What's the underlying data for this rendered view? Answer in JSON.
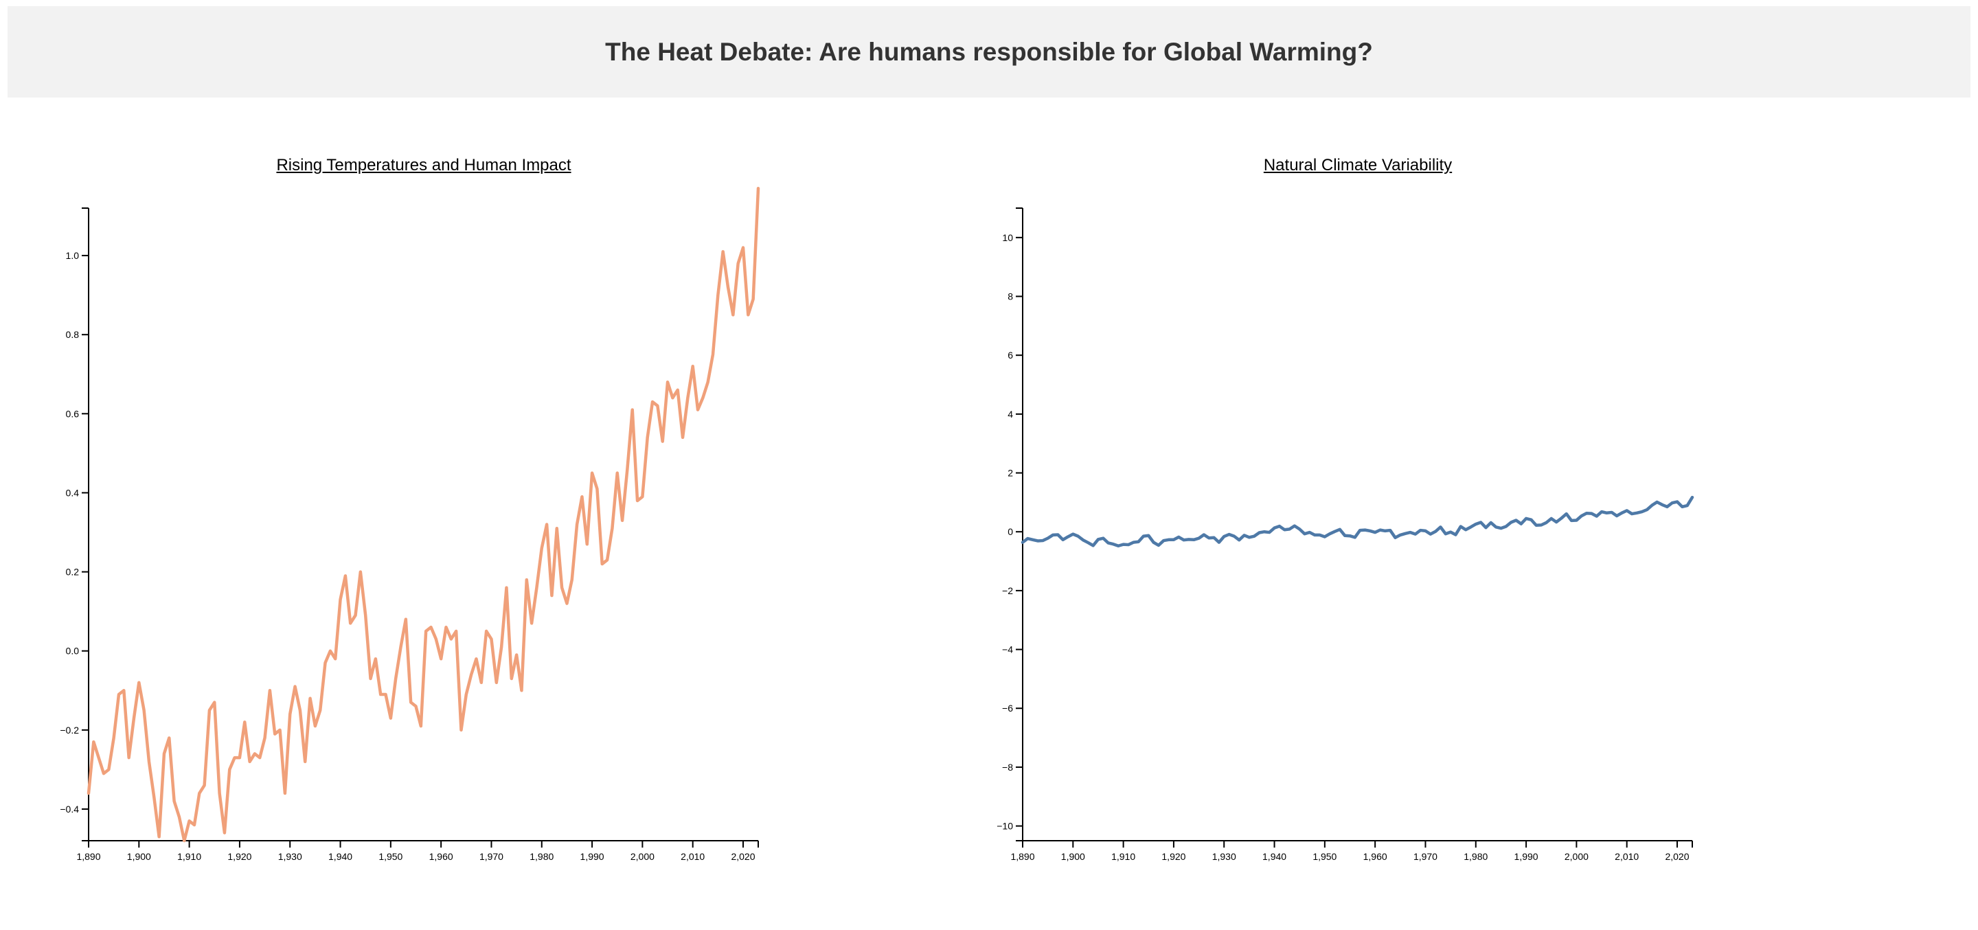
{
  "page_title": "The Heat Debate: Are humans responsible for Global Warming?",
  "chart_data": [
    {
      "type": "line",
      "title": "Rising Temperatures and Human Impact",
      "xlabel": "",
      "ylabel": "",
      "xlim": [
        1890,
        2023
      ],
      "ylim": [
        -0.48,
        1.12
      ],
      "x_ticks": [
        "1,890",
        "1,900",
        "1,910",
        "1,920",
        "1,930",
        "1,940",
        "1,950",
        "1,960",
        "1,970",
        "1,980",
        "1,990",
        "2,000",
        "2,010",
        "2,020"
      ],
      "x_tick_values": [
        1890,
        1900,
        1910,
        1920,
        1930,
        1940,
        1950,
        1960,
        1970,
        1980,
        1990,
        2000,
        2010,
        2020
      ],
      "y_ticks": [
        "−0.4",
        "−0.2",
        "0.0",
        "0.2",
        "0.4",
        "0.6",
        "0.8",
        "1.0"
      ],
      "y_tick_values": [
        -0.4,
        -0.2,
        0.0,
        0.2,
        0.4,
        0.6,
        0.8,
        1.0
      ],
      "grid": false,
      "color": "#f0a07a",
      "series": [
        {
          "x": [
            1890,
            1891,
            1892,
            1893,
            1894,
            1895,
            1896,
            1897,
            1898,
            1899,
            1900,
            1901,
            1902,
            1903,
            1904,
            1905,
            1906,
            1907,
            1908,
            1909,
            1910,
            1911,
            1912,
            1913,
            1914,
            1915,
            1916,
            1917,
            1918,
            1919,
            1920,
            1921,
            1922,
            1923,
            1924,
            1925,
            1926,
            1927,
            1928,
            1929,
            1930,
            1931,
            1932,
            1933,
            1934,
            1935,
            1936,
            1937,
            1938,
            1939,
            1940,
            1941,
            1942,
            1943,
            1944,
            1945,
            1946,
            1947,
            1948,
            1949,
            1950,
            1951,
            1952,
            1953,
            1954,
            1955,
            1956,
            1957,
            1958,
            1959,
            1960,
            1961,
            1962,
            1963,
            1964,
            1965,
            1966,
            1967,
            1968,
            1969,
            1970,
            1971,
            1972,
            1973,
            1974,
            1975,
            1976,
            1977,
            1978,
            1979,
            1980,
            1981,
            1982,
            1983,
            1984,
            1985,
            1986,
            1987,
            1988,
            1989,
            1990,
            1991,
            1992,
            1993,
            1994,
            1995,
            1996,
            1997,
            1998,
            1999,
            2000,
            2001,
            2002,
            2003,
            2004,
            2005,
            2006,
            2007,
            2008,
            2009,
            2010,
            2011,
            2012,
            2013,
            2014,
            2015,
            2016,
            2017,
            2018,
            2019,
            2020,
            2021,
            2022,
            2023
          ],
          "values": [
            -0.36,
            -0.23,
            -0.27,
            -0.31,
            -0.3,
            -0.22,
            -0.11,
            -0.1,
            -0.27,
            -0.17,
            -0.08,
            -0.15,
            -0.28,
            -0.37,
            -0.47,
            -0.26,
            -0.22,
            -0.38,
            -0.42,
            -0.48,
            -0.43,
            -0.44,
            -0.36,
            -0.34,
            -0.15,
            -0.13,
            -0.36,
            -0.46,
            -0.3,
            -0.27,
            -0.27,
            -0.18,
            -0.28,
            -0.26,
            -0.27,
            -0.22,
            -0.1,
            -0.21,
            -0.2,
            -0.36,
            -0.16,
            -0.09,
            -0.15,
            -0.28,
            -0.12,
            -0.19,
            -0.15,
            -0.03,
            0.0,
            -0.02,
            0.13,
            0.19,
            0.07,
            0.09,
            0.2,
            0.09,
            -0.07,
            -0.02,
            -0.11,
            -0.11,
            -0.17,
            -0.07,
            0.01,
            0.08,
            -0.13,
            -0.14,
            -0.19,
            0.05,
            0.06,
            0.03,
            -0.02,
            0.06,
            0.03,
            0.05,
            -0.2,
            -0.11,
            -0.06,
            -0.02,
            -0.08,
            0.05,
            0.03,
            -0.08,
            0.01,
            0.16,
            -0.07,
            -0.01,
            -0.1,
            0.18,
            0.07,
            0.16,
            0.26,
            0.32,
            0.14,
            0.31,
            0.16,
            0.12,
            0.18,
            0.32,
            0.39,
            0.27,
            0.45,
            0.41,
            0.22,
            0.23,
            0.31,
            0.45,
            0.33,
            0.46,
            0.61,
            0.38,
            0.39,
            0.54,
            0.63,
            0.62,
            0.53,
            0.68,
            0.64,
            0.66,
            0.54,
            0.64,
            0.72,
            0.61,
            0.64,
            0.68,
            0.75,
            0.9,
            1.01,
            0.92,
            0.85,
            0.98,
            1.02,
            0.85,
            0.89,
            1.17
          ]
        }
      ]
    },
    {
      "type": "line",
      "title": "Natural Climate Variability",
      "xlabel": "",
      "ylabel": "",
      "xlim": [
        1890,
        2023
      ],
      "ylim": [
        -10.5,
        11
      ],
      "x_ticks": [
        "1,890",
        "1,900",
        "1,910",
        "1,920",
        "1,930",
        "1,940",
        "1,950",
        "1,960",
        "1,970",
        "1,980",
        "1,990",
        "2,000",
        "2,010",
        "2,020"
      ],
      "x_tick_values": [
        1890,
        1900,
        1910,
        1920,
        1930,
        1940,
        1950,
        1960,
        1970,
        1980,
        1990,
        2000,
        2010,
        2020
      ],
      "y_ticks": [
        "−10",
        "−8",
        "−6",
        "−4",
        "−2",
        "0",
        "2",
        "4",
        "6",
        "8",
        "10"
      ],
      "y_tick_values": [
        -10,
        -8,
        -6,
        -4,
        -2,
        0,
        2,
        4,
        6,
        8,
        10
      ],
      "grid": false,
      "color": "#4e79a7",
      "series": [
        {
          "x": [
            1890,
            1891,
            1892,
            1893,
            1894,
            1895,
            1896,
            1897,
            1898,
            1899,
            1900,
            1901,
            1902,
            1903,
            1904,
            1905,
            1906,
            1907,
            1908,
            1909,
            1910,
            1911,
            1912,
            1913,
            1914,
            1915,
            1916,
            1917,
            1918,
            1919,
            1920,
            1921,
            1922,
            1923,
            1924,
            1925,
            1926,
            1927,
            1928,
            1929,
            1930,
            1931,
            1932,
            1933,
            1934,
            1935,
            1936,
            1937,
            1938,
            1939,
            1940,
            1941,
            1942,
            1943,
            1944,
            1945,
            1946,
            1947,
            1948,
            1949,
            1950,
            1951,
            1952,
            1953,
            1954,
            1955,
            1956,
            1957,
            1958,
            1959,
            1960,
            1961,
            1962,
            1963,
            1964,
            1965,
            1966,
            1967,
            1968,
            1969,
            1970,
            1971,
            1972,
            1973,
            1974,
            1975,
            1976,
            1977,
            1978,
            1979,
            1980,
            1981,
            1982,
            1983,
            1984,
            1985,
            1986,
            1987,
            1988,
            1989,
            1990,
            1991,
            1992,
            1993,
            1994,
            1995,
            1996,
            1997,
            1998,
            1999,
            2000,
            2001,
            2002,
            2003,
            2004,
            2005,
            2006,
            2007,
            2008,
            2009,
            2010,
            2011,
            2012,
            2013,
            2014,
            2015,
            2016,
            2017,
            2018,
            2019,
            2020,
            2021,
            2022,
            2023
          ],
          "values": [
            -0.36,
            -0.23,
            -0.27,
            -0.31,
            -0.3,
            -0.22,
            -0.11,
            -0.1,
            -0.27,
            -0.17,
            -0.08,
            -0.15,
            -0.28,
            -0.37,
            -0.47,
            -0.26,
            -0.22,
            -0.38,
            -0.42,
            -0.48,
            -0.43,
            -0.44,
            -0.36,
            -0.34,
            -0.15,
            -0.13,
            -0.36,
            -0.46,
            -0.3,
            -0.27,
            -0.27,
            -0.18,
            -0.28,
            -0.26,
            -0.27,
            -0.22,
            -0.1,
            -0.21,
            -0.2,
            -0.36,
            -0.16,
            -0.09,
            -0.15,
            -0.28,
            -0.12,
            -0.19,
            -0.15,
            -0.03,
            0.0,
            -0.02,
            0.13,
            0.19,
            0.07,
            0.09,
            0.2,
            0.09,
            -0.07,
            -0.02,
            -0.11,
            -0.11,
            -0.17,
            -0.07,
            0.01,
            0.08,
            -0.13,
            -0.14,
            -0.19,
            0.05,
            0.06,
            0.03,
            -0.02,
            0.06,
            0.03,
            0.05,
            -0.2,
            -0.11,
            -0.06,
            -0.02,
            -0.08,
            0.05,
            0.03,
            -0.08,
            0.01,
            0.16,
            -0.07,
            -0.01,
            -0.1,
            0.18,
            0.07,
            0.16,
            0.26,
            0.32,
            0.14,
            0.31,
            0.16,
            0.12,
            0.18,
            0.32,
            0.39,
            0.27,
            0.45,
            0.41,
            0.22,
            0.23,
            0.31,
            0.45,
            0.33,
            0.46,
            0.61,
            0.38,
            0.39,
            0.54,
            0.63,
            0.62,
            0.53,
            0.68,
            0.64,
            0.66,
            0.54,
            0.64,
            0.72,
            0.61,
            0.64,
            0.68,
            0.75,
            0.9,
            1.01,
            0.92,
            0.85,
            0.98,
            1.02,
            0.85,
            0.89,
            1.17
          ]
        }
      ]
    }
  ]
}
